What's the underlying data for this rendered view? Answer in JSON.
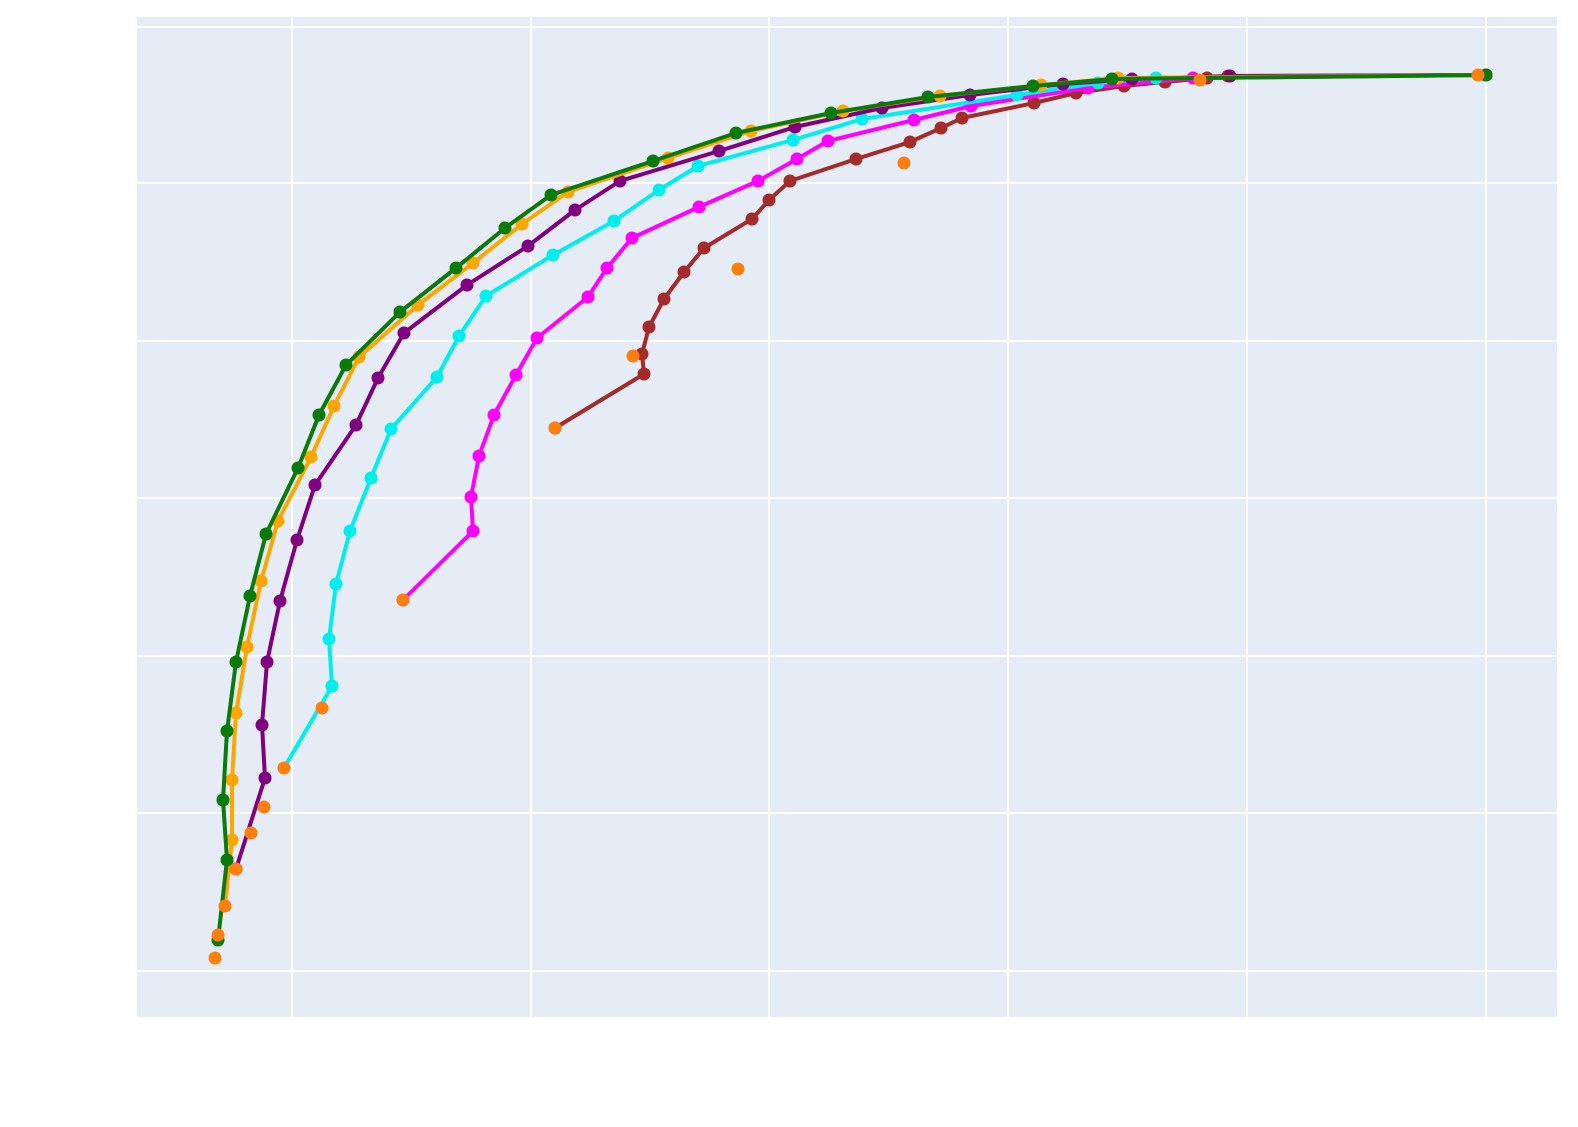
{
  "chart_data": {
    "type": "line",
    "xlim": [
      0,
      1420
    ],
    "ylim": [
      0,
      1000
    ],
    "xticks": [
      155,
      394,
      632,
      871,
      1110,
      1349
    ],
    "yticks": [
      46,
      204,
      361,
      519,
      676,
      834,
      990
    ],
    "grid": true,
    "series": [
      {
        "color": "#a52a2a",
        "line": true,
        "x": [
          418,
          507,
          505,
          512,
          527,
          547,
          567,
          615,
          632,
          653,
          719,
          773,
          804,
          825,
          897,
          939,
          987,
          1028,
          1070,
          1091,
          1349
        ],
        "values": [
          589,
          643,
          663,
          690,
          718,
          745,
          769,
          798,
          817,
          836,
          858,
          875,
          889,
          899,
          914,
          924,
          931,
          935,
          939,
          941,
          942
        ]
      },
      {
        "color": "#ff00ff",
        "line": true,
        "x": [
          266,
          336,
          334,
          342,
          357,
          379,
          400,
          451,
          470,
          495,
          562,
          621,
          660,
          691,
          777,
          834,
          951,
          1056,
          1349
        ],
        "values": [
          417,
          486,
          520,
          561,
          602,
          642,
          679,
          720,
          749,
          779,
          810,
          836,
          858,
          876,
          897,
          911,
          929,
          939,
          942
        ]
      },
      {
        "color": "#00eeee",
        "line": true,
        "x": [
          147,
          195,
          192,
          199,
          213,
          234,
          254,
          300,
          322,
          349,
          416,
          477,
          522,
          561,
          656,
          725,
          880,
          961,
          1019,
          1349
        ],
        "values": [
          249,
          331,
          378,
          433,
          486,
          539,
          588,
          640,
          681,
          721,
          762,
          796,
          827,
          851,
          877,
          898,
          922,
          934,
          939,
          942
        ]
      },
      {
        "color": "#800080",
        "line": true,
        "x": [
          99,
          128,
          125,
          130,
          143,
          160,
          178,
          219,
          241,
          267,
          330,
          391,
          438,
          483,
          582,
          658,
          745,
          833,
          926,
          995,
          1093,
          1349
        ],
        "values": [
          148,
          239,
          292,
          355,
          416,
          477,
          532,
          592,
          639,
          684,
          732,
          771,
          807,
          836,
          866,
          890,
          909,
          922,
          933,
          938,
          941,
          942
        ]
      },
      {
        "color": "#ffa500",
        "line": true,
        "x": [
          88,
          95,
          95,
          99,
          110,
          124,
          141,
          174,
          197,
          222,
          281,
          336,
          385,
          431,
          531,
          614,
          706,
          803,
          904,
          981,
          1349
        ],
        "values": [
          111,
          177,
          237,
          304,
          370,
          436,
          496,
          560,
          611,
          660,
          712,
          754,
          793,
          825,
          859,
          886,
          906,
          921,
          932,
          939,
          942
        ]
      },
      {
        "color": "#0a7a0a",
        "line": true,
        "x": [
          81,
          90,
          86,
          90,
          99,
          113,
          129,
          161,
          182,
          209,
          263,
          319,
          368,
          414,
          516,
          599,
          694,
          791,
          896,
          975,
          1349
        ],
        "values": [
          77,
          157,
          217,
          286,
          355,
          421,
          483,
          549,
          602,
          652,
          705,
          749,
          789,
          822,
          856,
          884,
          904,
          920,
          931,
          938,
          942
        ]
      },
      {
        "color": "#ff7f0e",
        "line": false,
        "x": [
          78,
          81,
          88,
          99,
          114,
          127,
          147,
          185,
          266,
          418,
          496,
          601,
          767,
          1063,
          1341
        ],
        "values": [
          59,
          82,
          111,
          148,
          184,
          210,
          249,
          309,
          417,
          589,
          661,
          748,
          854,
          937,
          942
        ]
      }
    ]
  }
}
